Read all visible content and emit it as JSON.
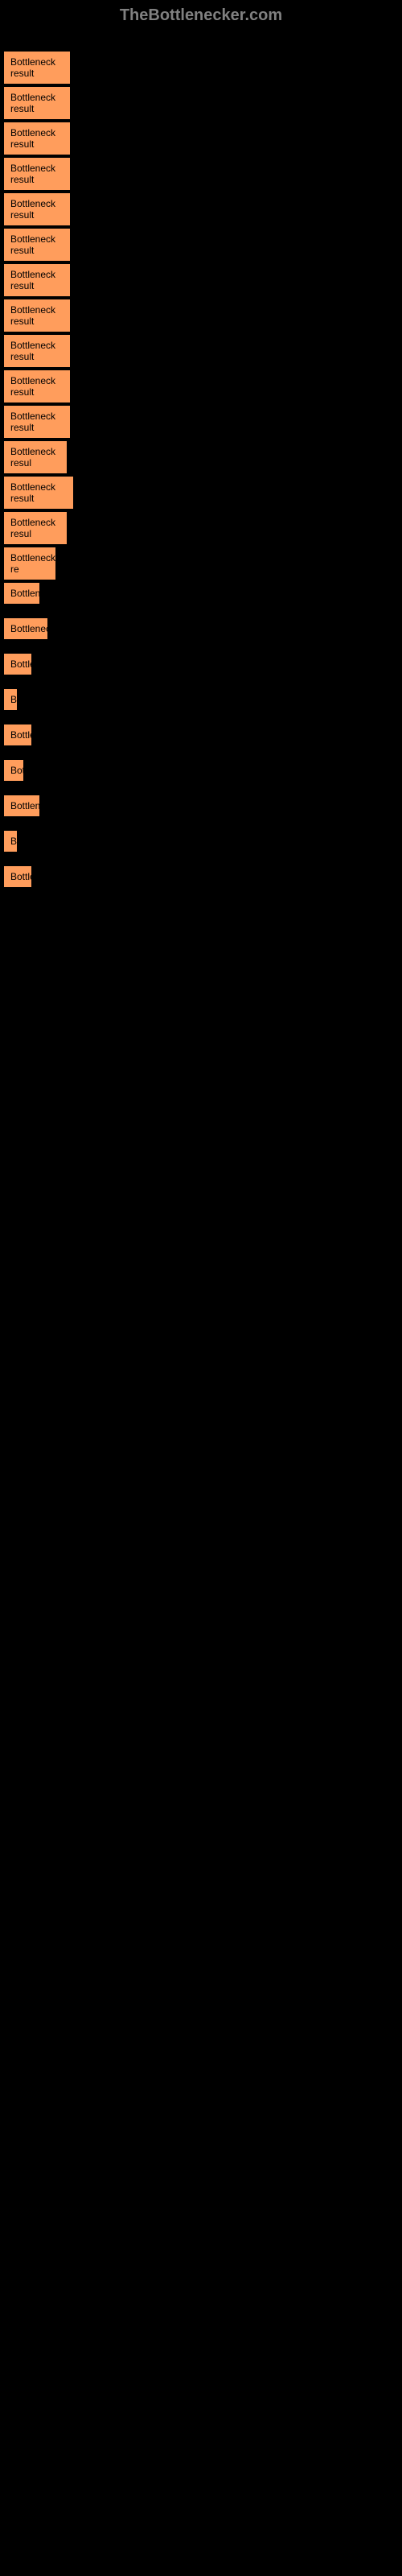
{
  "header": {
    "title": "TheBottlenecker.com"
  },
  "results": [
    {
      "label": "Bottleneck result",
      "width": 84
    },
    {
      "label": "Bottleneck result",
      "width": 84
    },
    {
      "label": "Bottleneck result",
      "width": 84
    },
    {
      "label": "Bottleneck result",
      "width": 84
    },
    {
      "label": "Bottleneck result",
      "width": 84
    },
    {
      "label": "Bottleneck result",
      "width": 84
    },
    {
      "label": "Bottleneck result",
      "width": 84
    },
    {
      "label": "Bottleneck result",
      "width": 84
    },
    {
      "label": "Bottleneck result",
      "width": 84
    },
    {
      "label": "Bottleneck result",
      "width": 84
    },
    {
      "label": "Bottleneck result",
      "width": 84
    },
    {
      "label": "Bottleneck resul",
      "width": 80
    },
    {
      "label": "Bottleneck result",
      "width": 88
    },
    {
      "label": "Bottleneck resul",
      "width": 80
    },
    {
      "label": "Bottleneck re",
      "width": 66
    },
    {
      "label": "Bottlene",
      "width": 46
    },
    {
      "label": "Bottleneck",
      "width": 56
    },
    {
      "label": "Bottle",
      "width": 36
    },
    {
      "label": "Bo",
      "width": 16
    },
    {
      "label": "Bottle",
      "width": 36
    },
    {
      "label": "Bott",
      "width": 26
    },
    {
      "label": "Bottlene",
      "width": 46
    },
    {
      "label": "B",
      "width": 10
    },
    {
      "label": "Bottle",
      "width": 36
    }
  ],
  "colors": {
    "background": "#000000",
    "item_background": "#ff9d5c",
    "item_border": "#000000",
    "header_text": "#808080"
  }
}
